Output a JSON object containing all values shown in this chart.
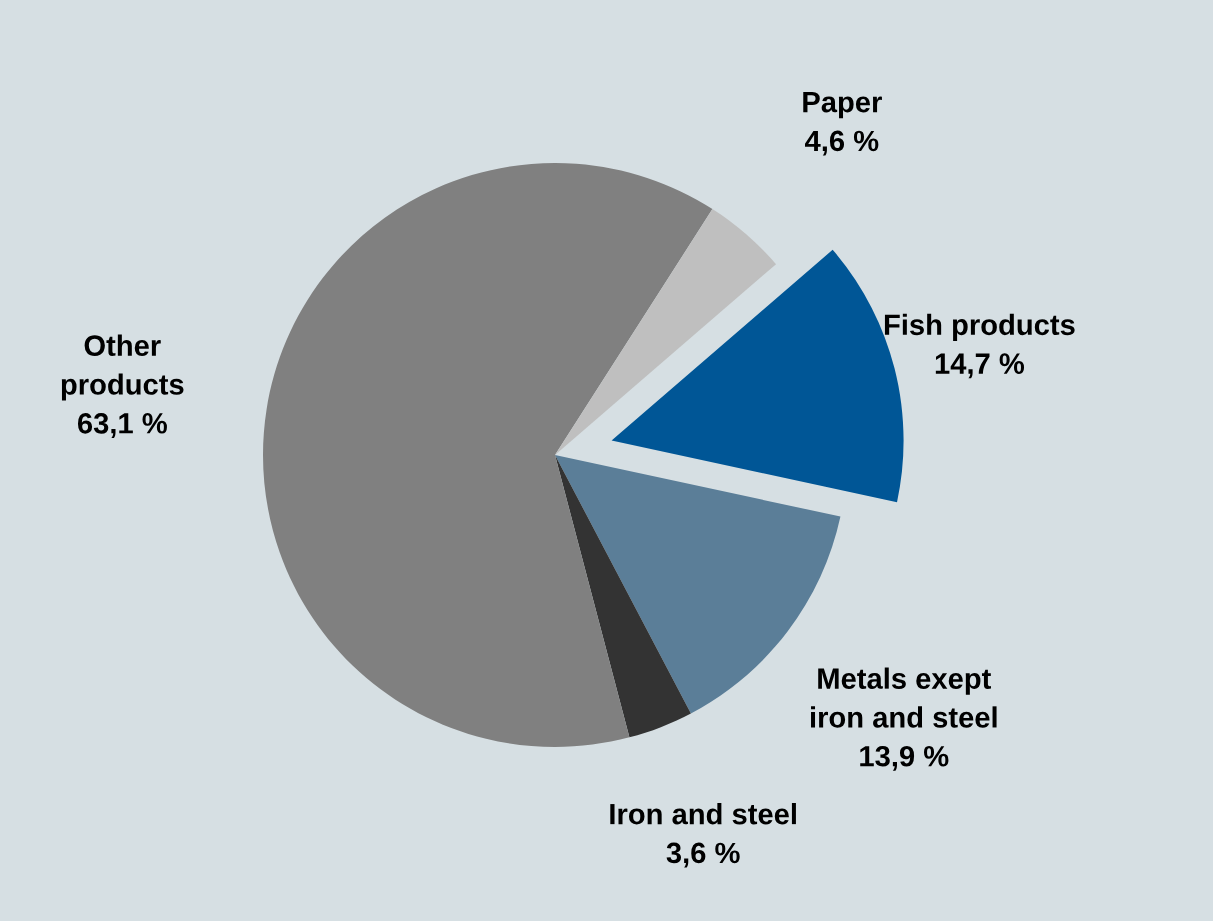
{
  "chart_data": {
    "type": "pie",
    "categories": [
      "Fish products",
      "Metals exept\niron and steel",
      "Iron and steel",
      "Other\nproducts",
      "Paper"
    ],
    "values": [
      14.7,
      13.9,
      3.6,
      63.1,
      4.6
    ],
    "colors": [
      "#005696",
      "#5b7e98",
      "#333333",
      "#808080",
      "#bfbfbf"
    ],
    "value_labels": [
      "14,7 %",
      "13,9 %",
      "3,6 %",
      "63,1 %",
      "4,6 %"
    ]
  }
}
